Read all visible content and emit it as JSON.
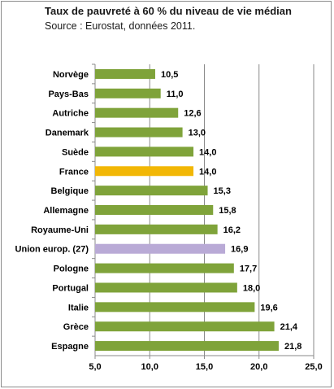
{
  "chart_data": {
    "type": "bar",
    "orientation": "horizontal",
    "title": "Taux de pauvreté à 60 % du niveau de vie  médian",
    "subtitle": "Source : Eurostat, données 2011.",
    "categories": [
      "Norvège",
      "Pays-Bas",
      "Autriche",
      "Danemark",
      "Suède",
      "France",
      "Belgique",
      "Allemagne",
      "Royaume-Uni",
      "Union europ. (27)",
      "Pologne",
      "Portugal",
      "Italie",
      "Grèce",
      "Espagne"
    ],
    "values": [
      10.5,
      11.0,
      12.6,
      13.0,
      14.0,
      14.0,
      15.3,
      15.8,
      16.2,
      16.9,
      17.7,
      18.0,
      19.6,
      21.4,
      21.8
    ],
    "value_labels": [
      "10,5",
      "11,0",
      "12,6",
      "13,0",
      "14,0",
      "14,0",
      "15,3",
      "15,8",
      "16,2",
      "16,9",
      "17,7",
      "18,0",
      "19,6",
      "21,4",
      "21,8"
    ],
    "bar_colors": [
      "#7fa33a",
      "#7fa33a",
      "#7fa33a",
      "#7fa33a",
      "#7fa33a",
      "#f2b705",
      "#7fa33a",
      "#7fa33a",
      "#7fa33a",
      "#b9aad6",
      "#7fa33a",
      "#7fa33a",
      "#7fa33a",
      "#7fa33a",
      "#7fa33a"
    ],
    "xlim": [
      5.0,
      25.0
    ],
    "xticks": [
      5.0,
      10.0,
      15.0,
      20.0,
      25.0
    ],
    "xtick_labels": [
      "5,0",
      "10,0",
      "15,0",
      "20,0",
      "25,0"
    ],
    "grid": true,
    "legend": "none"
  }
}
